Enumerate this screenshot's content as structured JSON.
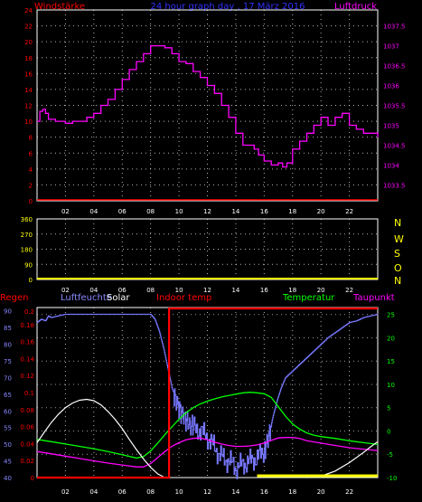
{
  "title": "24 hour graph day , 17 März 2016",
  "x_ticks": [
    "02",
    "04",
    "06",
    "08",
    "10",
    "12",
    "14",
    "16",
    "18",
    "20",
    "22"
  ],
  "chart_data": [
    {
      "id": "wind-pressure",
      "type": "line",
      "left_axis_label": "Windstärke",
      "right_axis_label": "Luftdruck",
      "left_ticks": [
        "24",
        "22",
        "20",
        "18",
        "16",
        "14",
        "12",
        "10",
        "8",
        "6",
        "4",
        "2",
        "0"
      ],
      "right_ticks": [
        "1037.5",
        "1037",
        "1036.5",
        "1036",
        "1035.5",
        "1035",
        "1034.5",
        "1034",
        "1033.5"
      ],
      "ylim_left": [
        0,
        24
      ],
      "ylim_right": [
        1033.1,
        1037.9
      ],
      "series": [
        {
          "name": "Luftdruck",
          "axis": "right",
          "color": "#ff00ff",
          "x": [
            0,
            0.2,
            0.4,
            0.6,
            0.8,
            1.0,
            1.3,
            1.6,
            2.0,
            2.5,
            3.0,
            3.5,
            4.0,
            4.5,
            5.0,
            5.5,
            6.0,
            6.5,
            7.0,
            7.5,
            8.0,
            8.3,
            8.6,
            9.0,
            9.5,
            10.0,
            10.5,
            11.0,
            11.5,
            12.0,
            12.5,
            13.0,
            13.5,
            14.0,
            14.5,
            15.0,
            15.3,
            15.6,
            16.0,
            16.5,
            17.0,
            17.3,
            17.6,
            18.0,
            18.5,
            19.0,
            19.5,
            20.0,
            20.5,
            21.0,
            21.5,
            22.0,
            22.5,
            23.0,
            23.5,
            24.0
          ],
          "y": [
            1035.1,
            1035.35,
            1035.4,
            1035.3,
            1035.15,
            1035.15,
            1035.1,
            1035.1,
            1035.05,
            1035.1,
            1035.1,
            1035.2,
            1035.3,
            1035.5,
            1035.65,
            1035.9,
            1036.15,
            1036.4,
            1036.6,
            1036.8,
            1037.0,
            1037.0,
            1037.0,
            1036.95,
            1036.8,
            1036.6,
            1036.55,
            1036.35,
            1036.2,
            1036.0,
            1035.8,
            1035.5,
            1035.2,
            1034.8,
            1034.5,
            1034.5,
            1034.4,
            1034.25,
            1034.1,
            1034.0,
            1034.05,
            1033.95,
            1034.05,
            1034.4,
            1034.6,
            1034.8,
            1035.0,
            1035.2,
            1035.0,
            1035.2,
            1035.3,
            1035.0,
            1034.9,
            1034.8,
            1034.8,
            1034.7
          ]
        },
        {
          "name": "Windstärke",
          "axis": "left",
          "color": "#ff0000",
          "x": [
            0,
            24
          ],
          "y": [
            0,
            0
          ]
        }
      ]
    },
    {
      "id": "wind-direction",
      "type": "scatter",
      "left_ticks": [
        "360",
        "270",
        "180",
        "90",
        "0"
      ],
      "right_labels": [
        "N",
        "W",
        "S",
        "O",
        "N"
      ],
      "ylim": [
        0,
        360
      ],
      "series": [
        {
          "name": "",
          "color": "#ffff00",
          "x": [
            0,
            24
          ],
          "y": [
            0,
            0
          ]
        }
      ]
    },
    {
      "id": "multi",
      "type": "line",
      "labels": {
        "regen": "Regen",
        "luftfeuchte": "Luftfeuchte",
        "solar": "Solar",
        "indoor": "Indoor temp",
        "temperatur": "Temperatur",
        "taupunkt": "Taupunkt"
      },
      "label_colors": {
        "regen": "#ff0000",
        "luftfeuchte": "#8888ff",
        "solar": "#ffffff",
        "indoor": "#ff0000",
        "temperatur": "#00ff00",
        "taupunkt": "#ff00ff"
      },
      "humidity_ticks": [
        "90",
        "85",
        "80",
        "75",
        "70",
        "65",
        "60",
        "55",
        "50",
        "45",
        "40"
      ],
      "rain_ticks": [
        "0.2",
        "0.18",
        "0.16",
        "0.14",
        "0.12",
        "0.1",
        "0.08",
        "0.06",
        "0.04",
        "0.02",
        "0"
      ],
      "temp_ticks": [
        "25",
        "20",
        "15",
        "10",
        "5",
        "0",
        "-5",
        "-10"
      ],
      "ylim_humidity": [
        40,
        91
      ],
      "ylim_temp": [
        -10,
        26.5
      ],
      "series": [
        {
          "name": "Luftfeuchte",
          "color": "#7777ff",
          "x": [
            0,
            0.3,
            0.6,
            0.8,
            1.0,
            1.5,
            2.0,
            3.0,
            4.0,
            5.0,
            6.0,
            7.0,
            8.0,
            8.3,
            8.6,
            8.9,
            9.2,
            9.5,
            9.8,
            10.1,
            10.4,
            10.7,
            11.0,
            11.5,
            12.0,
            12.5,
            13.0,
            13.5,
            14.0,
            14.5,
            15.0,
            15.5,
            16.0,
            16.3,
            16.6,
            16.9,
            17.2,
            17.5,
            18.0,
            18.5,
            19.0,
            19.5,
            20.0,
            20.5,
            21.0,
            21.5,
            22.0,
            22.5,
            23.0,
            23.5,
            24.0
          ],
          "y": [
            86.5,
            87.5,
            87,
            88.5,
            88,
            88.5,
            89,
            89,
            89,
            89,
            89,
            89,
            89,
            87.5,
            84,
            79,
            73,
            67,
            63,
            60,
            58,
            56,
            55,
            54,
            52,
            49,
            46,
            45,
            43,
            44,
            45,
            46,
            48,
            52,
            58,
            63,
            67,
            70,
            72,
            74,
            76,
            78,
            80,
            82,
            83.5,
            85,
            86.5,
            87,
            88,
            88.5,
            89
          ]
        },
        {
          "name": "Temperatur",
          "color": "#00ff00",
          "x": [
            0,
            1,
            2,
            3,
            4,
            5,
            6,
            7,
            7.5,
            8,
            8.5,
            9,
            9.5,
            10,
            10.5,
            11,
            11.5,
            12,
            12.5,
            13,
            13.5,
            14,
            14.5,
            15,
            15.5,
            16,
            16.5,
            17,
            17.5,
            18,
            18.5,
            19,
            19.5,
            20,
            21,
            22,
            23,
            24
          ],
          "y": [
            -1.8,
            -2.3,
            -2.8,
            -3.3,
            -3.8,
            -4.4,
            -5.1,
            -5.8,
            -5.5,
            -4.3,
            -2.6,
            -0.8,
            0.9,
            2.5,
            3.9,
            5.0,
            5.8,
            6.4,
            6.9,
            7.3,
            7.6,
            7.9,
            8.2,
            8.3,
            8.2,
            8.0,
            7.2,
            5.2,
            3.2,
            1.5,
            0.4,
            -0.4,
            -0.9,
            -1.2,
            -1.6,
            -2.1,
            -2.5,
            -2.9
          ]
        },
        {
          "name": "Taupunkt",
          "color": "#ff00ff",
          "x": [
            0,
            1,
            2,
            3,
            4,
            5,
            6,
            7,
            7.5,
            8,
            8.5,
            9,
            9.5,
            10,
            10.5,
            11,
            11.5,
            12,
            12.5,
            13,
            13.5,
            14,
            14.5,
            15,
            15.5,
            16,
            16.5,
            17,
            17.5,
            18,
            18.5,
            19,
            20,
            21,
            22,
            23,
            24
          ],
          "y": [
            -4.4,
            -4.9,
            -5.4,
            -5.9,
            -6.4,
            -6.9,
            -7.3,
            -7.7,
            -7.7,
            -7.0,
            -5.7,
            -4.4,
            -3.3,
            -2.5,
            -1.9,
            -1.6,
            -1.5,
            -1.9,
            -2.4,
            -2.8,
            -3.1,
            -3.3,
            -3.3,
            -3.2,
            -3.0,
            -2.6,
            -2.0,
            -1.5,
            -1.4,
            -1.4,
            -1.6,
            -2.1,
            -2.6,
            -3.1,
            -3.6,
            -3.9,
            -4.2
          ]
        },
        {
          "name": "Solar",
          "color": "#ffffff",
          "x": [
            0,
            0.5,
            1,
            1.5,
            2,
            2.5,
            3,
            3.5,
            4,
            4.5,
            5,
            5.5,
            6,
            6.5,
            7,
            7.5,
            8,
            8.5,
            9,
            19,
            20,
            21,
            22,
            23,
            23.5,
            24
          ],
          "y": [
            -2.5,
            -0.3,
            1.8,
            3.6,
            5.0,
            6.0,
            6.6,
            6.8,
            6.5,
            5.6,
            4.2,
            2.5,
            0.5,
            -1.8,
            -4.0,
            -6.0,
            -7.8,
            -9.2,
            -10.0,
            -10.0,
            -9.7,
            -8.6,
            -6.8,
            -4.6,
            -3.4,
            -2.3
          ]
        },
        {
          "name": "Indoor temp",
          "color": "#ff0000",
          "x": [
            0,
            9.3,
            9.3,
            24
          ],
          "y": [
            -10,
            -10,
            26.3,
            26.3
          ]
        },
        {
          "name": "Regen",
          "color": "#ffff00",
          "x": [
            15.5,
            24
          ],
          "y": [
            -10,
            -10
          ]
        }
      ]
    }
  ]
}
